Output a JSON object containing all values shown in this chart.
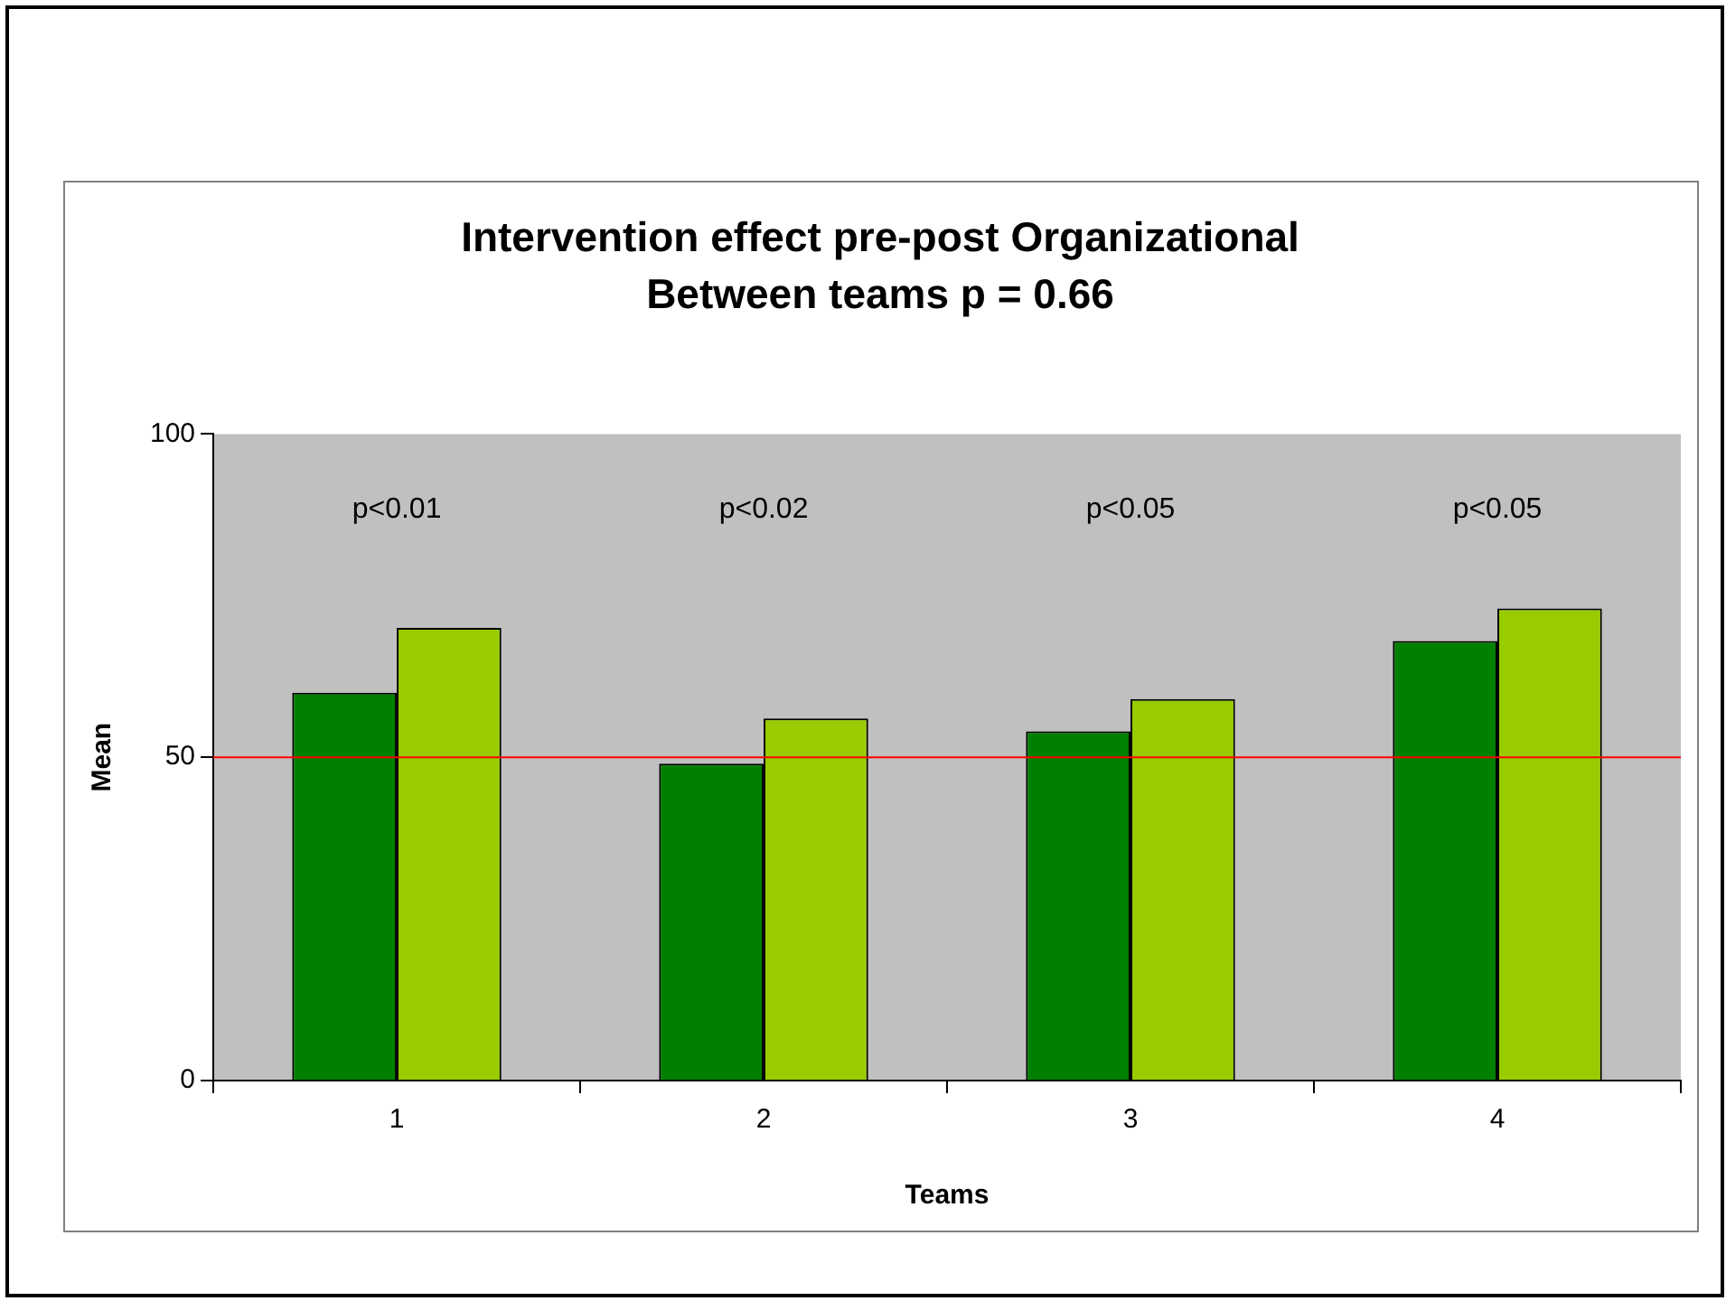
{
  "chart_data": {
    "type": "bar",
    "title": "Intervention effect pre-post Organizational",
    "subtitle": "Between teams p = 0.66",
    "xlabel": "Teams",
    "ylabel": "Mean",
    "categories": [
      "1",
      "2",
      "3",
      "4"
    ],
    "series": [
      {
        "color": "#008000",
        "values": [
          60,
          49,
          54,
          68
        ]
      },
      {
        "color": "#99cc00",
        "values": [
          70,
          56,
          59,
          73
        ]
      }
    ],
    "ylim": [
      0,
      100
    ],
    "yticks": [
      0,
      50,
      100
    ],
    "grid": false,
    "legend": false,
    "ref_lines": [
      {
        "axis": "y",
        "value": 50,
        "color": "#ff0000"
      }
    ],
    "annotations": [
      "p<0.01",
      "p<0.02",
      "p<0.05",
      "p<0.05"
    ]
  }
}
